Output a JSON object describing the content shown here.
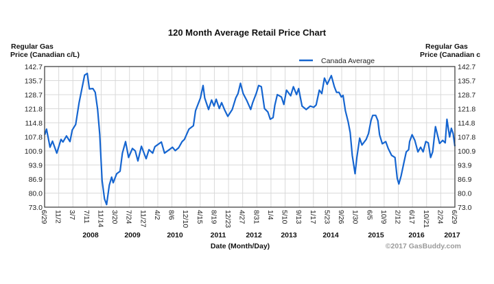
{
  "chart_data": {
    "type": "line",
    "title": "120 Month Average Retail Price Chart",
    "ylabel_left": [
      "Regular Gas",
      "Price (Canadian c/L)"
    ],
    "ylabel_right": [
      "Regular Gas",
      "Price (Canadian c"
    ],
    "xlabel": "Date (Month/Day)",
    "copyright": "©2017 GasBuddy.com",
    "legend": {
      "position": "top-right",
      "entries": [
        "Canada Average"
      ]
    },
    "grid": true,
    "ylim": [
      73.0,
      142.7
    ],
    "xlim": [
      "2007-06-29",
      "2017-06-29"
    ],
    "y_ticks": [
      "142.7",
      "135.7",
      "128.7",
      "121.8",
      "114.8",
      "107.8",
      "100.9",
      "93.9",
      "86.9",
      "80.0",
      "73.0"
    ],
    "x_ticks": [
      "6/29",
      "11/2",
      "3/7",
      "7/11",
      "11/14",
      "3/20",
      "7/24",
      "11/27",
      "4/2",
      "8/6",
      "12/10",
      "4/15",
      "8/19",
      "12/23",
      "4/27",
      "8/31",
      "1/4",
      "5/10",
      "9/13",
      "1/17",
      "5/23",
      "9/26",
      "1/30",
      "6/5",
      "10/9",
      "2/12",
      "6/17",
      "10/21",
      "2/24",
      "6/29"
    ],
    "x_year_labels": [
      "2008",
      "2009",
      "2010",
      "2011",
      "2012",
      "2013",
      "2014",
      "2015",
      "2016",
      "2017"
    ],
    "colors": {
      "line": "#1565d0",
      "grid": "#d9d9d9",
      "frame": "#333333"
    },
    "series": [
      {
        "name": "Canada Average",
        "x": [
          "2007-07-01",
          "2007-07-16",
          "2007-08-16",
          "2007-09-07",
          "2007-10-16",
          "2007-11-22",
          "2007-12-10",
          "2008-01-10",
          "2008-02-10",
          "2008-03-01",
          "2008-04-01",
          "2008-05-01",
          "2008-06-01",
          "2008-06-19",
          "2008-07-13",
          "2008-08-01",
          "2008-09-01",
          "2008-09-22",
          "2008-10-13",
          "2008-11-01",
          "2008-11-22",
          "2008-12-13",
          "2009-01-01",
          "2009-01-25",
          "2009-02-15",
          "2009-03-01",
          "2009-04-01",
          "2009-05-01",
          "2009-05-22",
          "2009-06-19",
          "2009-07-16",
          "2009-08-19",
          "2009-09-13",
          "2009-10-07",
          "2009-11-07",
          "2009-12-19",
          "2010-01-13",
          "2010-02-15",
          "2010-03-07",
          "2010-05-04",
          "2010-06-01",
          "2010-07-13",
          "2010-08-10",
          "2010-09-04",
          "2010-10-04",
          "2010-11-04",
          "2010-11-25",
          "2011-01-04",
          "2011-02-13",
          "2011-03-04",
          "2011-04-16",
          "2011-05-10",
          "2011-05-25",
          "2011-06-28",
          "2011-07-25",
          "2011-08-16",
          "2011-09-04",
          "2011-10-01",
          "2011-10-22",
          "2011-11-16",
          "2011-12-16",
          "2012-01-25",
          "2012-02-25",
          "2012-03-16",
          "2012-04-07",
          "2012-05-01",
          "2012-06-01",
          "2012-07-07",
          "2012-07-25",
          "2012-08-25",
          "2012-09-16",
          "2012-10-10",
          "2012-11-07",
          "2012-12-07",
          "2012-12-28",
          "2013-01-22",
          "2013-02-07",
          "2013-03-01",
          "2013-04-07",
          "2013-04-28",
          "2013-05-22",
          "2013-06-28",
          "2013-07-22",
          "2013-08-19",
          "2013-09-07",
          "2013-10-07",
          "2013-11-13",
          "2013-12-19",
          "2014-01-19",
          "2014-02-10",
          "2014-03-10",
          "2014-04-01",
          "2014-04-25",
          "2014-05-19",
          "2014-06-25",
          "2014-07-22",
          "2014-08-10",
          "2014-09-01",
          "2014-09-22",
          "2014-10-07",
          "2014-10-28",
          "2014-11-22",
          "2014-12-10",
          "2014-12-28",
          "2015-01-22",
          "2015-02-07",
          "2015-03-04",
          "2015-03-25",
          "2015-05-01",
          "2015-05-22",
          "2015-06-13",
          "2015-06-28",
          "2015-07-25",
          "2015-08-13",
          "2015-08-28",
          "2015-09-22",
          "2015-10-22",
          "2015-11-13",
          "2015-12-13",
          "2016-01-13",
          "2016-02-01",
          "2016-02-16",
          "2016-03-07",
          "2016-04-04",
          "2016-04-22",
          "2016-05-13",
          "2016-05-22",
          "2016-06-13",
          "2016-07-07",
          "2016-08-04",
          "2016-08-28",
          "2016-09-19",
          "2016-10-13",
          "2016-11-04",
          "2016-11-25",
          "2016-12-13",
          "2017-01-07",
          "2017-02-13",
          "2017-03-13",
          "2017-04-04",
          "2017-04-19",
          "2017-05-13",
          "2017-05-28",
          "2017-06-13",
          "2017-06-29"
        ],
        "y": [
          108.9,
          111.7,
          102.7,
          105.7,
          99.8,
          106.6,
          105.3,
          108.3,
          105.5,
          111.2,
          114.0,
          124.8,
          133.3,
          138.4,
          139.3,
          131.6,
          131.8,
          129.9,
          121.4,
          108.9,
          86.2,
          77.1,
          74.3,
          83.9,
          87.9,
          85.1,
          89.6,
          90.8,
          99.8,
          105.5,
          97.6,
          102.1,
          100.9,
          95.9,
          103.2,
          97.0,
          101.5,
          99.8,
          103.0,
          105.3,
          99.8,
          101.5,
          102.7,
          101.0,
          102.4,
          105.5,
          106.6,
          111.7,
          113.4,
          120.8,
          127.1,
          133.3,
          127.1,
          121.4,
          126.1,
          123.1,
          126.5,
          121.9,
          124.8,
          121.4,
          118.0,
          121.4,
          127.1,
          129.3,
          134.4,
          129.3,
          126.0,
          121.4,
          124.8,
          129.3,
          133.3,
          132.7,
          121.9,
          120.2,
          116.6,
          117.4,
          123.6,
          128.8,
          127.6,
          123.9,
          131.0,
          128.2,
          132.7,
          128.8,
          131.8,
          123.1,
          121.4,
          123.1,
          122.5,
          123.7,
          131.0,
          129.3,
          137.0,
          133.9,
          138.2,
          132.7,
          129.9,
          129.9,
          127.6,
          128.4,
          120.8,
          115.2,
          110.0,
          98.7,
          89.6,
          97.6,
          107.2,
          103.8,
          106.6,
          109.5,
          115.9,
          118.5,
          118.5,
          115.9,
          108.9,
          104.4,
          105.5,
          102.1,
          98.7,
          97.6,
          87.4,
          84.5,
          88.5,
          95.9,
          100.4,
          101.5,
          105.5,
          108.9,
          106.1,
          100.4,
          102.7,
          100.4,
          105.5,
          104.9,
          97.6,
          100.4,
          112.9,
          104.6,
          106.1,
          104.9,
          116.6,
          107.8,
          112.1,
          109.5,
          103.2
        ]
      }
    ]
  }
}
